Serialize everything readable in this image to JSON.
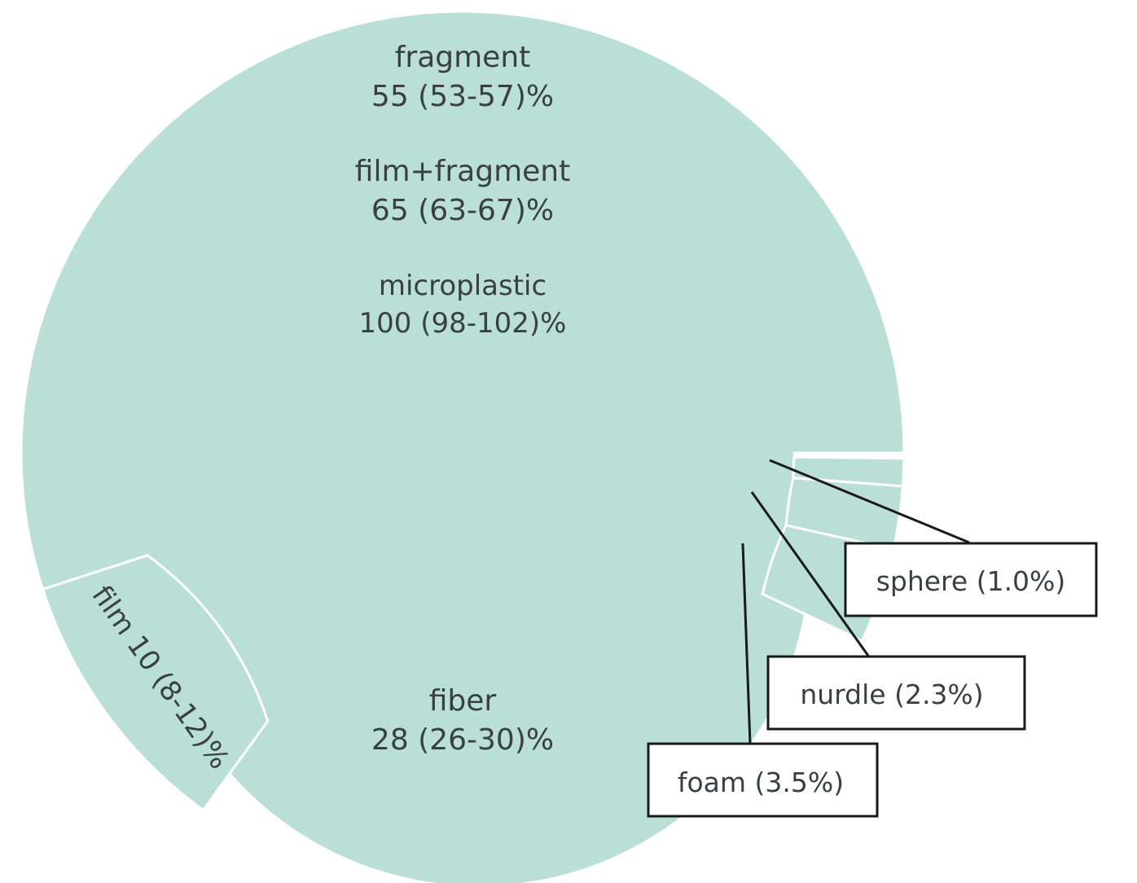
{
  "chart_data": {
    "type": "sunburst",
    "colors": {
      "inner": "#9fd1c8",
      "outer": "#badfd7",
      "stroke": "#ffffff",
      "text": "#3a3f44",
      "callout": "#1a1a1a"
    },
    "rings": [
      {
        "level": 1,
        "segments": [
          {
            "key": "microplastic",
            "name": "microplastic",
            "value_text": "100 (98-102)%",
            "value": 100,
            "low": 98,
            "high": 102
          }
        ]
      },
      {
        "level": 2,
        "segments": [
          {
            "key": "film_fragment",
            "name": "film+fragment",
            "value_text": "65 (63-67)%",
            "value": 65,
            "low": 63,
            "high": 67
          },
          {
            "key": "others",
            "name": "",
            "value_text": "",
            "value": 7
          },
          {
            "key": "fiber",
            "name": "fiber",
            "value_text": "28 (26-30)%",
            "value": 28,
            "low": 26,
            "high": 30
          }
        ]
      },
      {
        "level": 3,
        "segments": [
          {
            "key": "fragment",
            "name": "fragment",
            "value_text": "55 (53-57)%",
            "value": 55,
            "low": 53,
            "high": 57
          },
          {
            "key": "film",
            "name": "film",
            "value_text": "10 (8-12)%",
            "value": 10,
            "low": 8,
            "high": 12
          },
          {
            "key": "sphere",
            "name": "sphere",
            "value_text": "(1.0%)",
            "value": 1.0
          },
          {
            "key": "nurdle",
            "name": "nurdle",
            "value_text": "(2.3%)",
            "value": 2.3
          },
          {
            "key": "foam",
            "name": "foam",
            "value_text": "(3.5%)",
            "value": 3.5
          }
        ]
      }
    ],
    "labels": {
      "fragment": {
        "name": "fragment",
        "value": "55 (53-57)%"
      },
      "film_fragment": {
        "name": "film+fragment",
        "value": "65 (63-67)%"
      },
      "microplastic": {
        "name": "microplastic",
        "value": "100 (98-102)%"
      },
      "fiber": {
        "name": "fiber",
        "value": "28 (26-30)%"
      },
      "film": "film 10 (8-12)%"
    },
    "callouts": [
      {
        "key": "sphere",
        "label": "sphere (1.0%)"
      },
      {
        "key": "nurdle",
        "label": "nurdle (2.3%)"
      },
      {
        "key": "foam",
        "label": "foam (3.5%)"
      }
    ]
  }
}
